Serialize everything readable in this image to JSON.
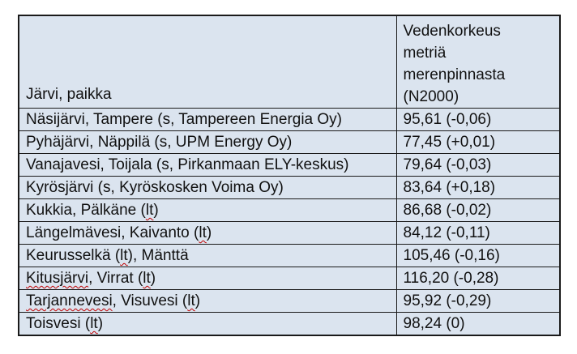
{
  "colors": {
    "page_bg": "#ffffff",
    "cell_bg": "#dbe4ef",
    "border": "#1a1a1a",
    "text": "#111111",
    "squiggle": "#c00000"
  },
  "table": {
    "header": {
      "col1": "Järvi, paikka",
      "col2_lines": [
        "Vedenkorkeus",
        "metriä",
        "merenpinnasta",
        "(N2000)"
      ]
    },
    "rows": [
      {
        "place": [
          {
            "t": "Näsijärvi, Tampere (s, Tampereen Energia Oy)",
            "m": false
          }
        ],
        "value": "95,61 (-0,06)"
      },
      {
        "place": [
          {
            "t": "Pyhäjärvi, Näppilä (s, UPM Energy Oy)",
            "m": false
          }
        ],
        "value": "77,45 (+0,01)"
      },
      {
        "place": [
          {
            "t": "Vanajavesi, Toijala (s, Pirkanmaan ELY-keskus)",
            "m": false
          }
        ],
        "value": "79,64 (-0,03)"
      },
      {
        "place": [
          {
            "t": "Kyrösjärvi (s, Kyröskosken Voima Oy)",
            "m": false
          }
        ],
        "value": "83,64 (+0,18)"
      },
      {
        "place": [
          {
            "t": "Kukkia, Pälkäne (",
            "m": false
          },
          {
            "t": "lt",
            "m": true
          },
          {
            "t": ")",
            "m": false
          }
        ],
        "value": "86,68 (-0,02)"
      },
      {
        "place": [
          {
            "t": "Längelmävesi, Kaivanto (",
            "m": false
          },
          {
            "t": "lt",
            "m": true
          },
          {
            "t": ")",
            "m": false
          }
        ],
        "value": "84,12 (-0,11)"
      },
      {
        "place": [
          {
            "t": "Keurusselkä (",
            "m": false
          },
          {
            "t": "lt",
            "m": true
          },
          {
            "t": "), Mänttä",
            "m": false
          }
        ],
        "value": "105,46 (-0,16)"
      },
      {
        "place": [
          {
            "t": "Kitusjärvi",
            "m": true
          },
          {
            "t": ", Virrat (",
            "m": false
          },
          {
            "t": "lt",
            "m": true
          },
          {
            "t": ")",
            "m": false
          }
        ],
        "value": "116,20 (-0,28)"
      },
      {
        "place": [
          {
            "t": "Tarjannevesi",
            "m": true
          },
          {
            "t": ", Visuvesi (",
            "m": false
          },
          {
            "t": "lt",
            "m": true
          },
          {
            "t": ")",
            "m": false
          }
        ],
        "value": "95,92 (-0,29)"
      },
      {
        "place": [
          {
            "t": "Toisvesi (",
            "m": false
          },
          {
            "t": "lt",
            "m": true
          },
          {
            "t": ")",
            "m": false
          }
        ],
        "value": "98,24 (0)"
      }
    ]
  }
}
